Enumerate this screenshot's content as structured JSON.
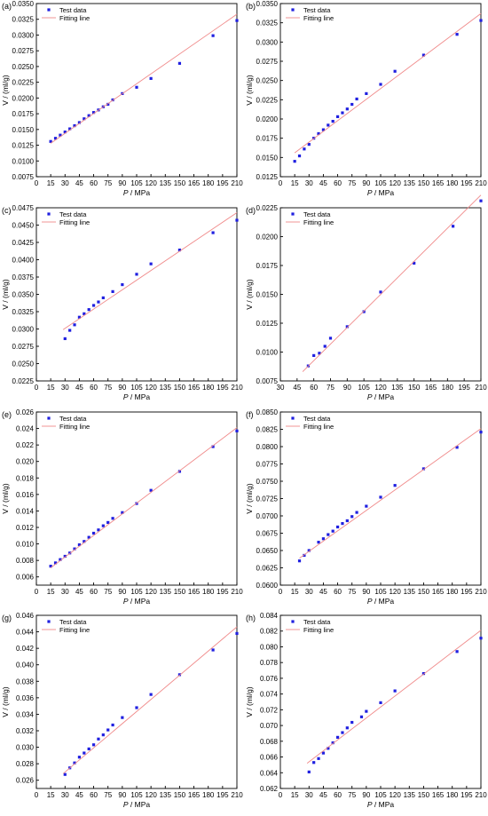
{
  "chart_data": [
    {
      "panel_label": "(a)",
      "type": "scatter",
      "xlabel_italic": "P",
      "xlabel_rest": " / MPa",
      "ylabel": "V / (ml/g)",
      "xlim": [
        0,
        210
      ],
      "ylim": [
        0.0075,
        0.035
      ],
      "xticks": [
        "0",
        "15",
        "30",
        "45",
        "60",
        "75",
        "90",
        "105",
        "120",
        "135",
        "150",
        "165",
        "180",
        "195",
        "210"
      ],
      "yticks": [
        "0.0075",
        "0.0100",
        "0.0125",
        "0.0150",
        "0.0175",
        "0.0200",
        "0.0225",
        "0.0250",
        "0.0275",
        "0.0300",
        "0.0325",
        "0.0350"
      ],
      "legend": [
        "Test data",
        "Fitting line"
      ],
      "legend_position": "top-left",
      "series": [
        {
          "name": "Test data",
          "kind": "points",
          "color": "#1f1fe0",
          "x": [
            15,
            20,
            25,
            30,
            35,
            40,
            45,
            50,
            55,
            60,
            65,
            70,
            75,
            80,
            90,
            105,
            120,
            150,
            185,
            210
          ],
          "y": [
            0.0131,
            0.0136,
            0.0141,
            0.0146,
            0.0151,
            0.0156,
            0.0161,
            0.0167,
            0.0172,
            0.0177,
            0.0181,
            0.0186,
            0.019,
            0.0197,
            0.0207,
            0.0217,
            0.0231,
            0.0255,
            0.0299,
            0.0323
          ]
        },
        {
          "name": "Fitting line",
          "kind": "line",
          "color": "#f08a8a",
          "x": [
            15,
            210
          ],
          "y": [
            0.0128,
            0.0333
          ]
        }
      ]
    },
    {
      "panel_label": "(b)",
      "type": "scatter",
      "xlabel_italic": "P",
      "xlabel_rest": " / MPa",
      "ylabel": "V / (ml/g)",
      "xlim": [
        0,
        210
      ],
      "ylim": [
        0.0125,
        0.035
      ],
      "xticks": [
        "0",
        "15",
        "30",
        "45",
        "60",
        "75",
        "90",
        "105",
        "120",
        "135",
        "150",
        "165",
        "180",
        "195",
        "210"
      ],
      "yticks": [
        "0.0125",
        "0.0150",
        "0.0175",
        "0.0200",
        "0.0225",
        "0.0250",
        "0.0275",
        "0.0300",
        "0.0325",
        "0.0350"
      ],
      "legend": [
        "Test data",
        "Fitting line"
      ],
      "legend_position": "top-left",
      "series": [
        {
          "name": "Test data",
          "kind": "points",
          "color": "#1f1fe0",
          "x": [
            15,
            20,
            25,
            30,
            35,
            40,
            45,
            50,
            55,
            60,
            65,
            70,
            75,
            80,
            90,
            105,
            120,
            150,
            185,
            210
          ],
          "y": [
            0.0145,
            0.0152,
            0.0161,
            0.0167,
            0.0175,
            0.0181,
            0.0186,
            0.0192,
            0.0197,
            0.0203,
            0.0208,
            0.0213,
            0.0219,
            0.0226,
            0.0233,
            0.0245,
            0.0262,
            0.0283,
            0.031,
            0.0328
          ]
        },
        {
          "name": "Fitting line",
          "kind": "line",
          "color": "#f08a8a",
          "x": [
            15,
            210
          ],
          "y": [
            0.0156,
            0.0337
          ]
        }
      ]
    },
    {
      "panel_label": "(c)",
      "type": "scatter",
      "xlabel_italic": "P",
      "xlabel_rest": " / MPa",
      "ylabel": "V / (ml/g)",
      "xlim": [
        0,
        210
      ],
      "ylim": [
        0.0225,
        0.0475
      ],
      "xticks": [
        "0",
        "15",
        "30",
        "45",
        "60",
        "75",
        "90",
        "105",
        "120",
        "135",
        "150",
        "165",
        "180",
        "195",
        "210"
      ],
      "yticks": [
        "0.0225",
        "0.0250",
        "0.0275",
        "0.0300",
        "0.0325",
        "0.0350",
        "0.0375",
        "0.0400",
        "0.0425",
        "0.0450",
        "0.0475"
      ],
      "legend": [
        "Test data",
        "Fitting line"
      ],
      "legend_position": "top-left",
      "series": [
        {
          "name": "Test data",
          "kind": "points",
          "color": "#1f1fe0",
          "x": [
            30,
            35,
            40,
            45,
            50,
            55,
            60,
            65,
            70,
            80,
            90,
            105,
            120,
            150,
            185,
            210
          ],
          "y": [
            0.0286,
            0.0298,
            0.0306,
            0.0317,
            0.0322,
            0.0328,
            0.0334,
            0.0339,
            0.0345,
            0.0354,
            0.0364,
            0.0379,
            0.0394,
            0.0414,
            0.0439,
            0.0457
          ]
        },
        {
          "name": "Fitting line",
          "kind": "line",
          "color": "#f08a8a",
          "x": [
            28,
            210
          ],
          "y": [
            0.0299,
            0.0468
          ]
        }
      ]
    },
    {
      "panel_label": "(d)",
      "type": "scatter",
      "xlabel_italic": "P",
      "xlabel_rest": " / MPa",
      "ylabel": "V / (ml/g)",
      "xlim": [
        30,
        210
      ],
      "ylim": [
        0.0075,
        0.0225
      ],
      "xticks": [
        "30",
        "45",
        "60",
        "75",
        "90",
        "105",
        "120",
        "135",
        "150",
        "165",
        "180",
        "195",
        "210"
      ],
      "yticks": [
        "0.0075",
        "0.0100",
        "0.0125",
        "0.0150",
        "0.0175",
        "0.0200",
        "0.0225"
      ],
      "legend": [
        "Test data",
        "Fitting line"
      ],
      "legend_position": "top-left",
      "series": [
        {
          "name": "Test data",
          "kind": "points",
          "color": "#1f1fe0",
          "x": [
            55,
            60,
            65,
            70,
            75,
            90,
            105,
            120,
            150,
            185,
            210
          ],
          "y": [
            0.0088,
            0.0097,
            0.0099,
            0.0105,
            0.0112,
            0.0122,
            0.0135,
            0.0152,
            0.0177,
            0.0209,
            0.0231
          ]
        },
        {
          "name": "Fitting line",
          "kind": "line",
          "color": "#f08a8a",
          "x": [
            50,
            210
          ],
          "y": [
            0.0083,
            0.0236
          ]
        }
      ]
    },
    {
      "panel_label": "(e)",
      "type": "scatter",
      "xlabel_italic": "P",
      "xlabel_rest": " / MPa",
      "ylabel": "V / (ml/g)",
      "xlim": [
        0,
        210
      ],
      "ylim": [
        0.005,
        0.026
      ],
      "xticks": [
        "0",
        "15",
        "30",
        "45",
        "60",
        "75",
        "90",
        "105",
        "120",
        "135",
        "150",
        "165",
        "180",
        "195",
        "210"
      ],
      "yticks": [
        "0.006",
        "0.008",
        "0.010",
        "0.012",
        "0.014",
        "0.016",
        "0.018",
        "0.020",
        "0.022",
        "0.024",
        "0.026"
      ],
      "legend": [
        "Test data",
        "Fitting line"
      ],
      "legend_position": "top-left",
      "series": [
        {
          "name": "Test data",
          "kind": "points",
          "color": "#1f1fe0",
          "x": [
            15,
            20,
            25,
            30,
            35,
            40,
            45,
            50,
            55,
            60,
            65,
            70,
            75,
            80,
            90,
            105,
            120,
            150,
            185,
            210
          ],
          "y": [
            0.0073,
            0.0077,
            0.0081,
            0.0085,
            0.0089,
            0.0094,
            0.0099,
            0.0103,
            0.0108,
            0.0113,
            0.0117,
            0.0122,
            0.0126,
            0.0131,
            0.0138,
            0.0149,
            0.0165,
            0.0188,
            0.0218,
            0.0237
          ]
        },
        {
          "name": "Fitting line",
          "kind": "line",
          "color": "#f08a8a",
          "x": [
            15,
            210
          ],
          "y": [
            0.0071,
            0.0241
          ]
        }
      ]
    },
    {
      "panel_label": "(f)",
      "type": "scatter",
      "xlabel_italic": "P",
      "xlabel_rest": " / MPa",
      "ylabel": "V / (ml/g)",
      "xlim": [
        0,
        210
      ],
      "ylim": [
        0.06,
        0.085
      ],
      "xticks": [
        "0",
        "15",
        "30",
        "45",
        "60",
        "75",
        "90",
        "105",
        "120",
        "135",
        "150",
        "165",
        "180",
        "195",
        "210"
      ],
      "yticks": [
        "0.0600",
        "0.0625",
        "0.0650",
        "0.0675",
        "0.0700",
        "0.0725",
        "0.0750",
        "0.0775",
        "0.0800",
        "0.0825",
        "0.0850"
      ],
      "legend": [
        "Test data",
        "Fitting line"
      ],
      "legend_position": "top-left",
      "series": [
        {
          "name": "Test data",
          "kind": "points",
          "color": "#1f1fe0",
          "x": [
            20,
            25,
            30,
            40,
            45,
            50,
            55,
            60,
            65,
            70,
            75,
            80,
            90,
            105,
            120,
            150,
            185,
            210
          ],
          "y": [
            0.0635,
            0.0643,
            0.065,
            0.0662,
            0.0667,
            0.0673,
            0.0678,
            0.0684,
            0.0689,
            0.0693,
            0.0699,
            0.0705,
            0.0714,
            0.0727,
            0.0744,
            0.0768,
            0.0799,
            0.0821
          ]
        },
        {
          "name": "Fitting line",
          "kind": "line",
          "color": "#f08a8a",
          "x": [
            20,
            210
          ],
          "y": [
            0.0639,
            0.0826
          ]
        }
      ]
    },
    {
      "panel_label": "(g)",
      "type": "scatter",
      "xlabel_italic": "P",
      "xlabel_rest": " / MPa",
      "ylabel": "V / (ml/g)",
      "xlim": [
        0,
        210
      ],
      "ylim": [
        0.025,
        0.046
      ],
      "xticks": [
        "0",
        "15",
        "30",
        "45",
        "60",
        "75",
        "90",
        "105",
        "120",
        "135",
        "150",
        "165",
        "180",
        "195",
        "210"
      ],
      "yticks": [
        "0.026",
        "0.028",
        "0.030",
        "0.032",
        "0.034",
        "0.036",
        "0.038",
        "0.040",
        "0.042",
        "0.044",
        "0.046"
      ],
      "legend": [
        "Test data",
        "Fitting line"
      ],
      "legend_position": "top-left",
      "series": [
        {
          "name": "Test data",
          "kind": "points",
          "color": "#1f1fe0",
          "x": [
            30,
            35,
            40,
            45,
            50,
            55,
            60,
            65,
            70,
            75,
            80,
            90,
            105,
            120,
            150,
            185,
            210
          ],
          "y": [
            0.0267,
            0.0275,
            0.0281,
            0.0288,
            0.0293,
            0.0298,
            0.0303,
            0.031,
            0.0315,
            0.0321,
            0.0327,
            0.0336,
            0.0348,
            0.0364,
            0.0388,
            0.0418,
            0.0438
          ]
        },
        {
          "name": "Fitting line",
          "kind": "line",
          "color": "#f08a8a",
          "x": [
            28,
            210
          ],
          "y": [
            0.0268,
            0.0446
          ]
        }
      ]
    },
    {
      "panel_label": "(h)",
      "type": "scatter",
      "xlabel_italic": "P",
      "xlabel_rest": " / MPa",
      "ylabel": "V / (ml/g)",
      "xlim": [
        0,
        210
      ],
      "ylim": [
        0.062,
        0.084
      ],
      "xticks": [
        "0",
        "15",
        "30",
        "45",
        "60",
        "75",
        "90",
        "105",
        "120",
        "135",
        "150",
        "165",
        "180",
        "195",
        "210"
      ],
      "yticks": [
        "0.062",
        "0.064",
        "0.066",
        "0.068",
        "0.070",
        "0.072",
        "0.074",
        "0.076",
        "0.078",
        "0.080",
        "0.082",
        "0.084"
      ],
      "legend": [
        "Test data",
        "Fitting line"
      ],
      "legend_position": "top-left",
      "series": [
        {
          "name": "Test data",
          "kind": "points",
          "color": "#1f1fe0",
          "x": [
            30,
            35,
            40,
            45,
            50,
            55,
            60,
            65,
            70,
            75,
            85,
            90,
            105,
            120,
            150,
            185,
            210
          ],
          "y": [
            0.0641,
            0.0653,
            0.0658,
            0.0665,
            0.0671,
            0.0678,
            0.0685,
            0.0691,
            0.0697,
            0.0704,
            0.0711,
            0.0718,
            0.0729,
            0.0744,
            0.0766,
            0.0794,
            0.0811
          ]
        },
        {
          "name": "Fitting line",
          "kind": "line",
          "color": "#f08a8a",
          "x": [
            28,
            210
          ],
          "y": [
            0.0652,
            0.0821
          ]
        }
      ]
    }
  ]
}
